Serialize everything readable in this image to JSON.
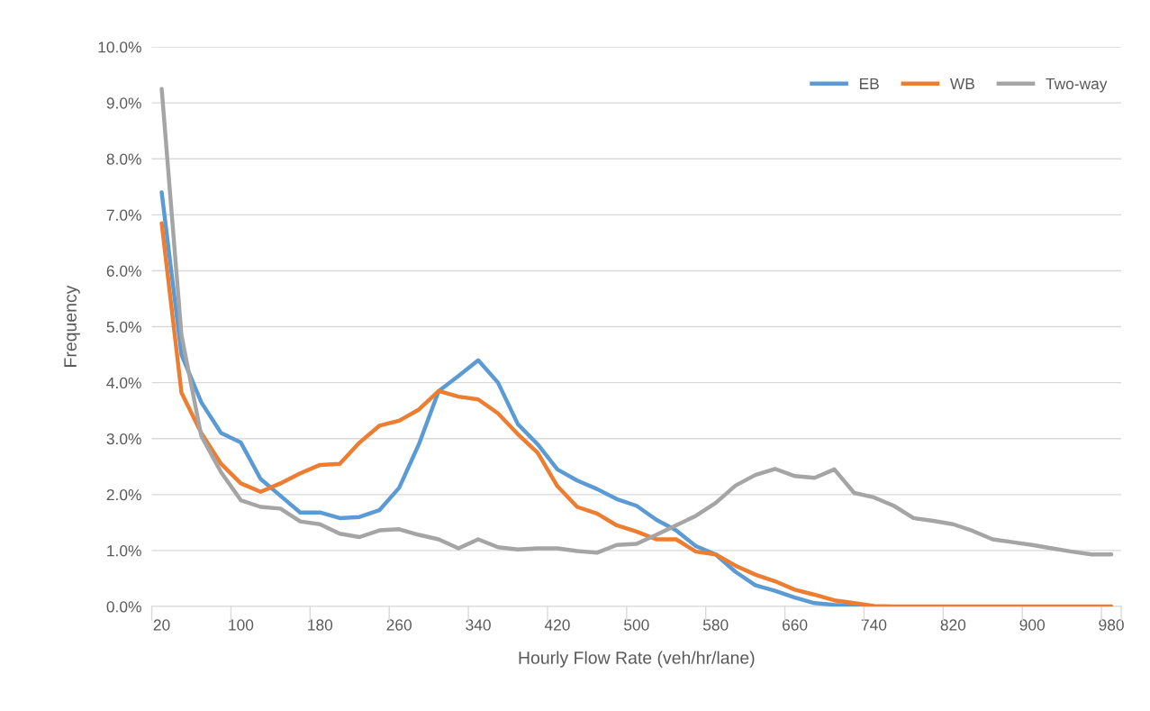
{
  "chart_data": {
    "type": "line",
    "xlabel": "Hourly Flow Rate (veh/hr/lane)",
    "ylabel": "Frequency",
    "categories": [
      "20",
      null,
      null,
      null,
      "100",
      null,
      null,
      null,
      "180",
      null,
      null,
      null,
      "260",
      null,
      null,
      null,
      "340",
      null,
      null,
      null,
      "420",
      null,
      null,
      null,
      "500",
      null,
      null,
      null,
      "580",
      null,
      null,
      null,
      "660",
      null,
      null,
      null,
      "740",
      null,
      null,
      null,
      "820",
      null,
      null,
      null,
      "900",
      null,
      null,
      null,
      "980"
    ],
    "series": [
      {
        "name": "EB",
        "color": "#5b9bd5",
        "values": [
          7.4,
          4.5,
          3.65,
          3.1,
          2.93,
          2.28,
          1.98,
          1.68,
          1.68,
          1.58,
          1.6,
          1.72,
          2.12,
          2.9,
          3.85,
          4.12,
          4.4,
          4.0,
          3.26,
          2.9,
          2.45,
          2.25,
          2.1,
          1.92,
          1.8,
          1.55,
          1.36,
          1.08,
          0.93,
          0.62,
          0.38,
          0.28,
          0.16,
          0.06,
          0.03,
          0.01,
          0,
          null,
          null,
          null,
          null,
          null,
          null,
          null,
          null,
          null,
          null,
          null,
          null
        ]
      },
      {
        "name": "WB",
        "color": "#ed7d31",
        "values": [
          6.85,
          3.82,
          3.1,
          2.55,
          2.2,
          2.05,
          2.2,
          2.38,
          2.53,
          2.55,
          2.93,
          3.23,
          3.32,
          3.52,
          3.85,
          3.75,
          3.7,
          3.45,
          3.08,
          2.75,
          2.15,
          1.78,
          1.66,
          1.45,
          1.34,
          1.2,
          1.2,
          0.98,
          0.93,
          0.73,
          0.57,
          0.45,
          0.3,
          0.21,
          0.11,
          0.06,
          0.01,
          0,
          0,
          0,
          0,
          0,
          0,
          0,
          0,
          0,
          0,
          0,
          0
        ]
      },
      {
        "name": "Two-way",
        "color": "#a5a5a5",
        "values": [
          9.25,
          4.85,
          3.05,
          2.4,
          1.9,
          1.78,
          1.75,
          1.52,
          1.47,
          1.3,
          1.24,
          1.36,
          1.38,
          1.28,
          1.2,
          1.04,
          1.2,
          1.06,
          1.02,
          1.04,
          1.04,
          0.99,
          0.96,
          1.1,
          1.12,
          1.28,
          1.45,
          1.62,
          1.85,
          2.16,
          2.35,
          2.46,
          2.33,
          2.3,
          2.45,
          2.03,
          1.95,
          1.8,
          1.58,
          1.53,
          1.47,
          1.35,
          1.2,
          1.15,
          1.1,
          1.04,
          0.98,
          0.93,
          0.93
        ]
      }
    ],
    "ylim": [
      0,
      10
    ],
    "yticks": [
      {
        "value": 0,
        "label": "0.0%"
      },
      {
        "value": 1,
        "label": "1.0%"
      },
      {
        "value": 2,
        "label": "2.0%"
      },
      {
        "value": 3,
        "label": "3.0%"
      },
      {
        "value": 4,
        "label": "4.0%"
      },
      {
        "value": 5,
        "label": "5.0%"
      },
      {
        "value": 6,
        "label": "6.0%"
      },
      {
        "value": 7,
        "label": "7.0%"
      },
      {
        "value": 8,
        "label": "8.0%"
      },
      {
        "value": 9,
        "label": "9.0%"
      },
      {
        "value": 10,
        "label": "10.0%"
      }
    ],
    "grid": "y",
    "legend": "top right",
    "marker": "none",
    "line_style": "solid"
  }
}
